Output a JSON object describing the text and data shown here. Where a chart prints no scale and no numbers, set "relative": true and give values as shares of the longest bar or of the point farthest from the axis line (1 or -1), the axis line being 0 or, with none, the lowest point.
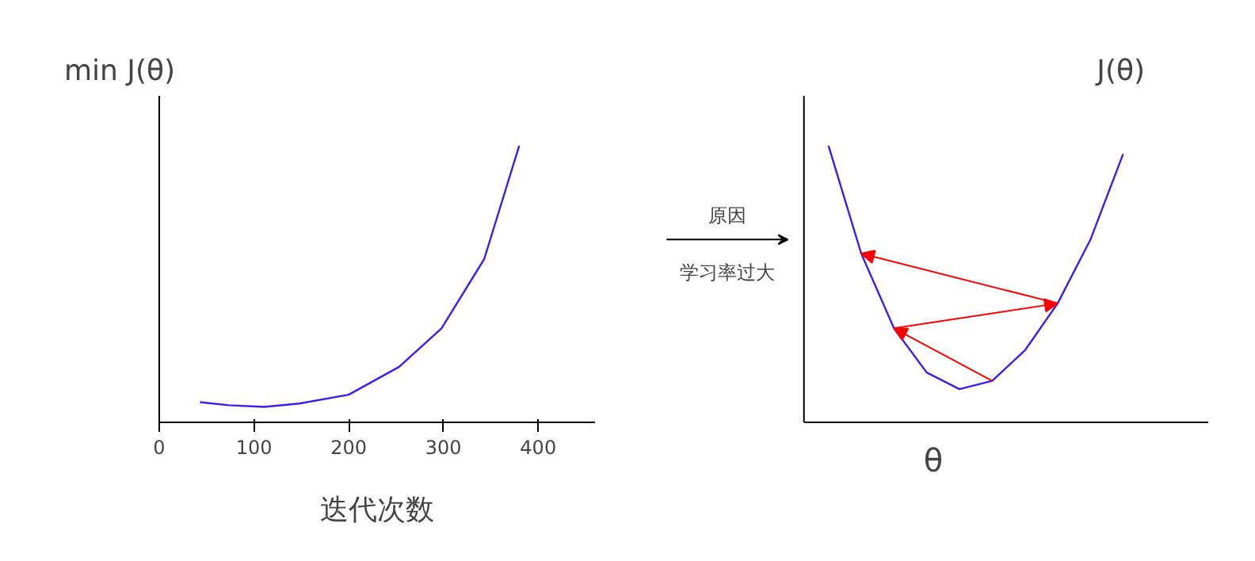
{
  "chart_data": [
    {
      "type": "line",
      "title": "min  J(θ)",
      "xlabel": "迭代次数",
      "x": [
        43,
        73,
        111,
        148,
        200,
        253,
        298,
        343,
        380
      ],
      "relative": true,
      "xlim": [
        0,
        460
      ],
      "xticks": [
        0,
        100,
        200,
        300,
        400
      ],
      "grid": false,
      "series": [
        {
          "color": "#3a1ef0",
          "values": [
            0.073,
            0.062,
            0.056,
            0.068,
            0.1,
            0.2,
            0.34,
            0.59,
            1
          ]
        }
      ]
    },
    {
      "type": "line",
      "title": "J(θ)",
      "xlabel": "θ",
      "annotations": [
        "原因",
        "学习率过大"
      ],
      "categories": [
        null,
        null,
        null,
        null,
        null,
        null,
        null,
        null,
        null,
        null
      ],
      "relative": true,
      "grid": false,
      "series": [
        {
          "color": "#3a1ef0",
          "values": [
            1,
            0.61,
            0.34,
            0.18,
            0.12,
            0.15,
            0.26,
            0.43,
            0.66,
            0.97
          ]
        }
      ]
    }
  ]
}
